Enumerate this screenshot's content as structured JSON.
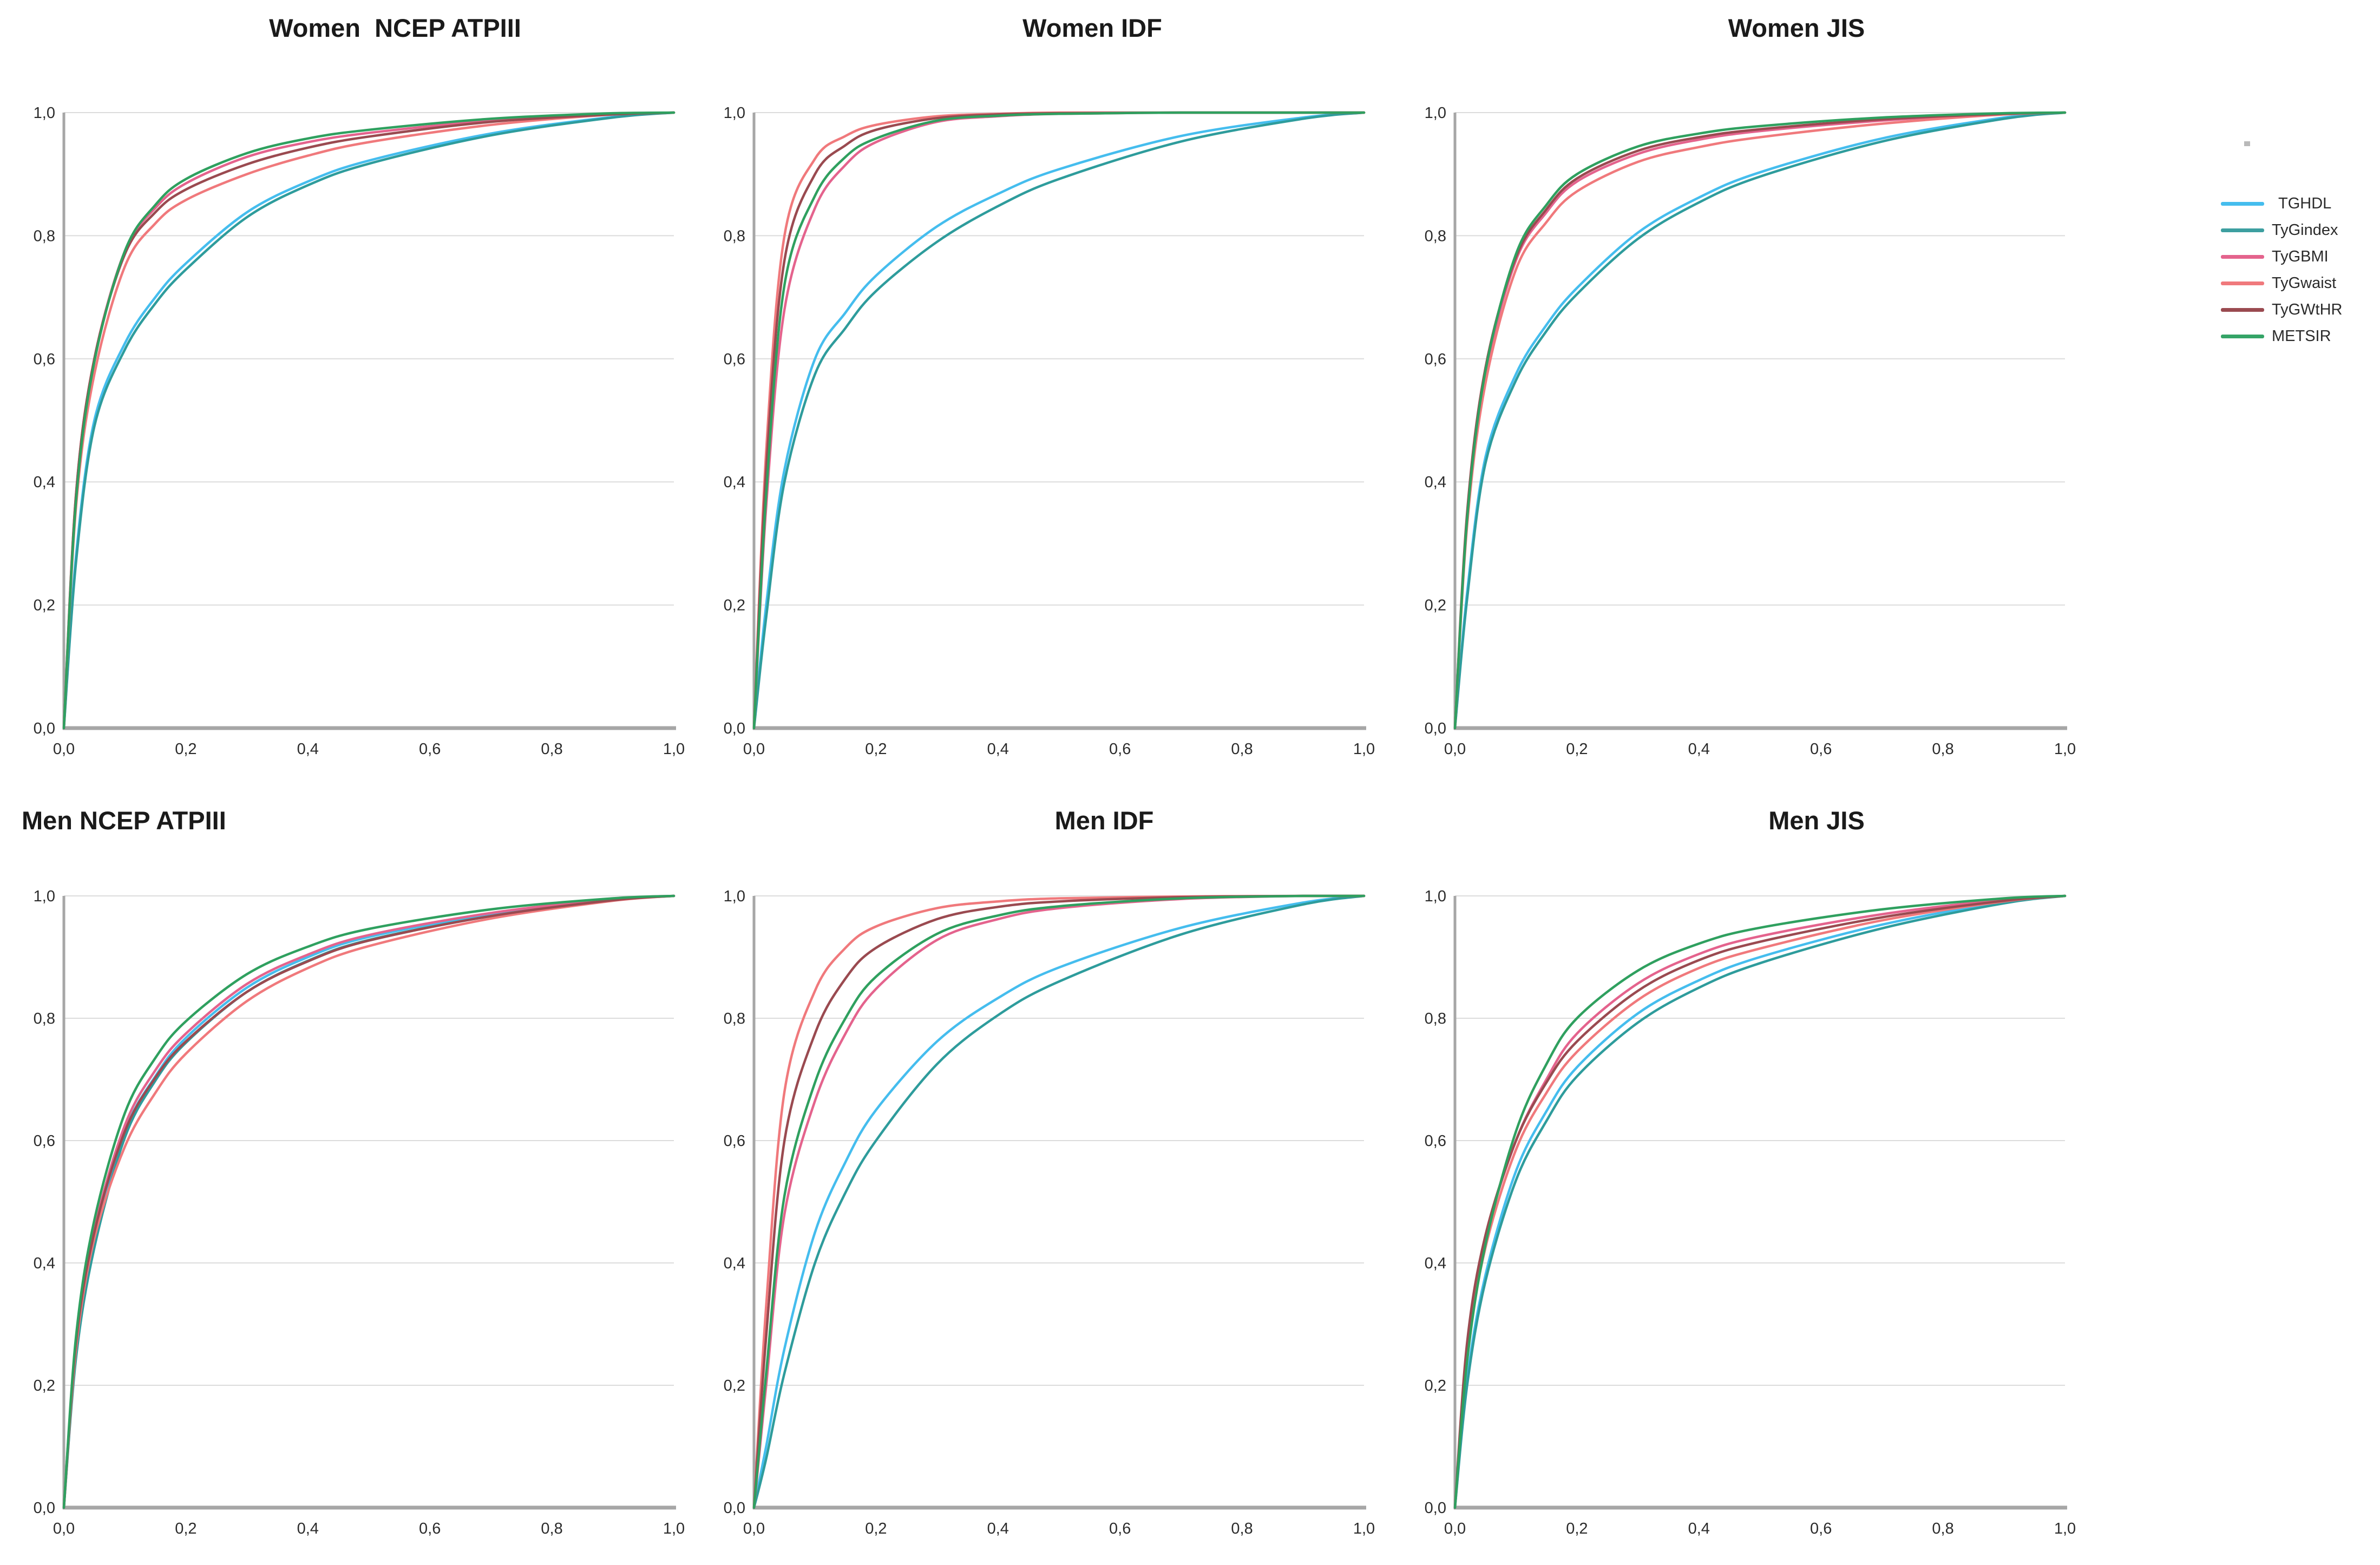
{
  "figure": {
    "background": "#ffffff",
    "grid_color": "#dcdcdc",
    "axis_color": "#a6a6a6",
    "tick_color": "#2b2b2b"
  },
  "legend": {
    "items": [
      {
        "label": "TGHDL",
        "color": "#45bdee"
      },
      {
        "label": "TyGindex",
        "color": "#3d9fa0"
      },
      {
        "label": "TyGBMI",
        "color": "#e4638d"
      },
      {
        "label": "TyGwaist",
        "color": "#f0797c"
      },
      {
        "label": "TyGWtHR",
        "color": "#9a4a50"
      },
      {
        "label": "METSIR",
        "color": "#35a467"
      }
    ]
  },
  "chart_data": [
    {
      "type": "line",
      "title": "Women  NCEP ATPIII",
      "xlabel": "",
      "ylabel": "",
      "xlim": [
        0,
        1
      ],
      "ylim": [
        0,
        1
      ],
      "grid": "horizontal",
      "legend_position": "outside-right-of-figure",
      "x_ticks": [
        "0,0",
        "0,2",
        "0,4",
        "0,6",
        "0,8",
        "1,0"
      ],
      "y_ticks": [
        "0,0",
        "0,2",
        "0,4",
        "0,6",
        "0,8",
        "1,0"
      ],
      "x": [
        0,
        0.02,
        0.05,
        0.1,
        0.15,
        0.2,
        0.3,
        0.4,
        0.5,
        0.7,
        0.9,
        1.0
      ],
      "series": [
        {
          "name": "TGHDL",
          "color": "#45bdee",
          "y": [
            0,
            0.28,
            0.5,
            0.625,
            0.7,
            0.755,
            0.838,
            0.888,
            0.922,
            0.966,
            0.993,
            1
          ]
        },
        {
          "name": "TyGindex",
          "color": "#2e9c9c",
          "y": [
            0,
            0.27,
            0.49,
            0.615,
            0.69,
            0.745,
            0.83,
            0.882,
            0.917,
            0.963,
            0.992,
            1
          ]
        },
        {
          "name": "TyGBMI",
          "color": "#e4638d",
          "y": [
            0,
            0.38,
            0.6,
            0.775,
            0.845,
            0.885,
            0.928,
            0.952,
            0.967,
            0.987,
            0.998,
            1
          ]
        },
        {
          "name": "TyGwaist",
          "color": "#f0797c",
          "y": [
            0,
            0.36,
            0.575,
            0.75,
            0.82,
            0.858,
            0.9,
            0.93,
            0.952,
            0.98,
            0.997,
            1
          ]
        },
        {
          "name": "TyGWtHR",
          "color": "#9a4a50",
          "y": [
            0,
            0.38,
            0.6,
            0.77,
            0.838,
            0.875,
            0.916,
            0.943,
            0.961,
            0.985,
            0.997,
            1
          ]
        },
        {
          "name": "METSIR",
          "color": "#2fa05f",
          "y": [
            0,
            0.37,
            0.595,
            0.775,
            0.85,
            0.892,
            0.934,
            0.958,
            0.972,
            0.99,
            0.999,
            1
          ]
        }
      ]
    },
    {
      "type": "line",
      "title": "Women IDF",
      "xlabel": "",
      "ylabel": "",
      "xlim": [
        0,
        1
      ],
      "ylim": [
        0,
        1
      ],
      "grid": "horizontal",
      "x_ticks": [
        "0,0",
        "0,2",
        "0,4",
        "0,6",
        "0,8",
        "1,0"
      ],
      "y_ticks": [
        "0,0",
        "0,2",
        "0,4",
        "0,6",
        "0,8",
        "1,0"
      ],
      "x": [
        0,
        0.02,
        0.05,
        0.1,
        0.15,
        0.2,
        0.3,
        0.4,
        0.5,
        0.7,
        0.9,
        1.0
      ],
      "series": [
        {
          "name": "TGHDL",
          "color": "#45bdee",
          "y": [
            0,
            0.2,
            0.42,
            0.6,
            0.675,
            0.735,
            0.815,
            0.868,
            0.908,
            0.962,
            0.992,
            1
          ]
        },
        {
          "name": "TyGindex",
          "color": "#2e9c9c",
          "y": [
            0,
            0.18,
            0.4,
            0.575,
            0.65,
            0.71,
            0.79,
            0.848,
            0.892,
            0.953,
            0.99,
            1
          ]
        },
        {
          "name": "TyGBMI",
          "color": "#e4638d",
          "y": [
            0,
            0.36,
            0.68,
            0.845,
            0.915,
            0.952,
            0.985,
            0.994,
            0.998,
            1,
            1,
            1
          ]
        },
        {
          "name": "TyGwaist",
          "color": "#f0797c",
          "y": [
            0,
            0.45,
            0.8,
            0.925,
            0.962,
            0.98,
            0.994,
            0.998,
            1,
            1,
            1,
            1
          ]
        },
        {
          "name": "TyGWtHR",
          "color": "#9a4a50",
          "y": [
            0,
            0.42,
            0.76,
            0.9,
            0.947,
            0.972,
            0.991,
            0.997,
            0.999,
            1,
            1,
            1
          ]
        },
        {
          "name": "METSIR",
          "color": "#2fa05f",
          "y": [
            0,
            0.38,
            0.72,
            0.865,
            0.928,
            0.958,
            0.987,
            0.995,
            0.998,
            1,
            1,
            1
          ]
        }
      ]
    },
    {
      "type": "line",
      "title": "Women JIS",
      "xlabel": "",
      "ylabel": "",
      "xlim": [
        0,
        1
      ],
      "ylim": [
        0,
        1
      ],
      "grid": "horizontal",
      "x_ticks": [
        "0,0",
        "0,2",
        "0,4",
        "0,6",
        "0,8",
        "1,0"
      ],
      "y_ticks": [
        "0,0",
        "0,2",
        "0,4",
        "0,6",
        "0,8",
        "1,0"
      ],
      "x": [
        0,
        0.02,
        0.05,
        0.1,
        0.15,
        0.2,
        0.3,
        0.4,
        0.5,
        0.7,
        0.9,
        1.0
      ],
      "series": [
        {
          "name": "TGHDL",
          "color": "#45bdee",
          "y": [
            0,
            0.22,
            0.44,
            0.575,
            0.655,
            0.715,
            0.805,
            0.862,
            0.903,
            0.958,
            0.992,
            1
          ]
        },
        {
          "name": "TyGindex",
          "color": "#2e9c9c",
          "y": [
            0,
            0.21,
            0.43,
            0.565,
            0.645,
            0.705,
            0.795,
            0.854,
            0.896,
            0.953,
            0.99,
            1
          ]
        },
        {
          "name": "TyGBMI",
          "color": "#e4638d",
          "y": [
            0,
            0.34,
            0.575,
            0.76,
            0.838,
            0.888,
            0.933,
            0.956,
            0.97,
            0.987,
            0.998,
            1
          ]
        },
        {
          "name": "TyGwaist",
          "color": "#f0797c",
          "y": [
            0,
            0.33,
            0.56,
            0.745,
            0.822,
            0.872,
            0.92,
            0.944,
            0.96,
            0.982,
            0.997,
            1
          ]
        },
        {
          "name": "TyGWtHR",
          "color": "#9a4a50",
          "y": [
            0,
            0.35,
            0.585,
            0.765,
            0.843,
            0.893,
            0.938,
            0.96,
            0.973,
            0.989,
            0.998,
            1
          ]
        },
        {
          "name": "METSIR",
          "color": "#2fa05f",
          "y": [
            0,
            0.34,
            0.58,
            0.77,
            0.85,
            0.9,
            0.945,
            0.966,
            0.978,
            0.992,
            0.999,
            1
          ]
        }
      ]
    },
    {
      "type": "line",
      "title": "Men NCEP ATPIII",
      "xlabel": "",
      "ylabel": "",
      "xlim": [
        0,
        1
      ],
      "ylim": [
        0,
        1
      ],
      "grid": "horizontal",
      "x_ticks": [
        "0,0",
        "0,2",
        "0,4",
        "0,6",
        "0,8",
        "1,0"
      ],
      "y_ticks": [
        "0,0",
        "0,2",
        "0,4",
        "0,6",
        "0,8",
        "1,0"
      ],
      "x": [
        0,
        0.02,
        0.05,
        0.1,
        0.15,
        0.2,
        0.3,
        0.4,
        0.5,
        0.7,
        0.9,
        1.0
      ],
      "series": [
        {
          "name": "TGHDL",
          "color": "#45bdee",
          "y": [
            0,
            0.25,
            0.435,
            0.615,
            0.705,
            0.768,
            0.85,
            0.9,
            0.933,
            0.97,
            0.994,
            1
          ]
        },
        {
          "name": "TyGindex",
          "color": "#2e9c9c",
          "y": [
            0,
            0.245,
            0.425,
            0.605,
            0.698,
            0.76,
            0.843,
            0.894,
            0.928,
            0.967,
            0.993,
            1
          ]
        },
        {
          "name": "TyGBMI",
          "color": "#e4638d",
          "y": [
            0,
            0.27,
            0.455,
            0.625,
            0.715,
            0.775,
            0.856,
            0.904,
            0.936,
            0.972,
            0.995,
            1
          ]
        },
        {
          "name": "TyGwaist",
          "color": "#f0797c",
          "y": [
            0,
            0.26,
            0.44,
            0.59,
            0.678,
            0.742,
            0.828,
            0.882,
            0.918,
            0.963,
            0.992,
            1
          ]
        },
        {
          "name": "TyGWtHR",
          "color": "#9a4a50",
          "y": [
            0,
            0.27,
            0.45,
            0.615,
            0.703,
            0.762,
            0.843,
            0.893,
            0.927,
            0.967,
            0.993,
            1
          ]
        },
        {
          "name": "METSIR",
          "color": "#2fa05f",
          "y": [
            0,
            0.28,
            0.47,
            0.645,
            0.735,
            0.795,
            0.872,
            0.917,
            0.946,
            0.978,
            0.996,
            1
          ]
        }
      ]
    },
    {
      "type": "line",
      "title": "Men IDF",
      "xlabel": "",
      "ylabel": "",
      "xlim": [
        0,
        1
      ],
      "ylim": [
        0,
        1
      ],
      "grid": "horizontal",
      "x_ticks": [
        "0,0",
        "0,2",
        "0,4",
        "0,6",
        "0,8",
        "1,0"
      ],
      "y_ticks": [
        "0,0",
        "0,2",
        "0,4",
        "0,6",
        "0,8",
        "1,0"
      ],
      "x": [
        0,
        0.02,
        0.05,
        0.1,
        0.15,
        0.2,
        0.3,
        0.4,
        0.5,
        0.7,
        0.9,
        1.0
      ],
      "series": [
        {
          "name": "TGHDL",
          "color": "#45bdee",
          "y": [
            0,
            0.1,
            0.26,
            0.45,
            0.565,
            0.65,
            0.762,
            0.833,
            0.883,
            0.948,
            0.989,
            1
          ]
        },
        {
          "name": "TyGindex",
          "color": "#2e9c9c",
          "y": [
            0,
            0.08,
            0.22,
            0.4,
            0.515,
            0.6,
            0.725,
            0.805,
            0.86,
            0.937,
            0.986,
            1
          ]
        },
        {
          "name": "TyGBMI",
          "color": "#e4638d",
          "y": [
            0,
            0.2,
            0.48,
            0.665,
            0.775,
            0.848,
            0.928,
            0.962,
            0.98,
            0.995,
            1,
            1
          ]
        },
        {
          "name": "TyGwaist",
          "color": "#f0797c",
          "y": [
            0,
            0.33,
            0.68,
            0.845,
            0.915,
            0.95,
            0.98,
            0.991,
            0.996,
            0.999,
            1,
            1
          ]
        },
        {
          "name": "TyGWtHR",
          "color": "#9a4a50",
          "y": [
            0,
            0.28,
            0.6,
            0.775,
            0.865,
            0.915,
            0.962,
            0.982,
            0.991,
            0.998,
            1,
            1
          ]
        },
        {
          "name": "METSIR",
          "color": "#2fa05f",
          "y": [
            0,
            0.22,
            0.51,
            0.695,
            0.8,
            0.868,
            0.938,
            0.968,
            0.983,
            0.996,
            1,
            1
          ]
        }
      ]
    },
    {
      "type": "line",
      "title": "Men JIS",
      "xlabel": "",
      "ylabel": "",
      "xlim": [
        0,
        1
      ],
      "ylim": [
        0,
        1
      ],
      "grid": "horizontal",
      "x_ticks": [
        "0,0",
        "0,2",
        "0,4",
        "0,6",
        "0,8",
        "1,0"
      ],
      "y_ticks": [
        "0,0",
        "0,2",
        "0,4",
        "0,6",
        "0,8",
        "1,0"
      ],
      "x": [
        0,
        0.02,
        0.05,
        0.1,
        0.15,
        0.2,
        0.3,
        0.4,
        0.5,
        0.7,
        0.9,
        1.0
      ],
      "series": [
        {
          "name": "TGHDL",
          "color": "#45bdee",
          "y": [
            0,
            0.21,
            0.38,
            0.55,
            0.648,
            0.72,
            0.808,
            0.862,
            0.9,
            0.953,
            0.99,
            1
          ]
        },
        {
          "name": "TyGindex",
          "color": "#2e9c9c",
          "y": [
            0,
            0.2,
            0.37,
            0.535,
            0.632,
            0.705,
            0.793,
            0.85,
            0.89,
            0.947,
            0.988,
            1
          ]
        },
        {
          "name": "TyGBMI",
          "color": "#e4638d",
          "y": [
            0,
            0.26,
            0.44,
            0.6,
            0.7,
            0.775,
            0.857,
            0.905,
            0.934,
            0.97,
            0.994,
            1
          ]
        },
        {
          "name": "TyGwaist",
          "color": "#f0797c",
          "y": [
            0,
            0.25,
            0.425,
            0.585,
            0.678,
            0.745,
            0.83,
            0.882,
            0.914,
            0.96,
            0.991,
            1
          ]
        },
        {
          "name": "TyGWtHR",
          "color": "#9a4a50",
          "y": [
            0,
            0.27,
            0.445,
            0.6,
            0.695,
            0.762,
            0.845,
            0.895,
            0.925,
            0.965,
            0.992,
            1
          ]
        },
        {
          "name": "METSIR",
          "color": "#2fa05f",
          "y": [
            0,
            0.24,
            0.43,
            0.615,
            0.725,
            0.8,
            0.878,
            0.922,
            0.948,
            0.978,
            0.996,
            1
          ]
        }
      ]
    }
  ]
}
